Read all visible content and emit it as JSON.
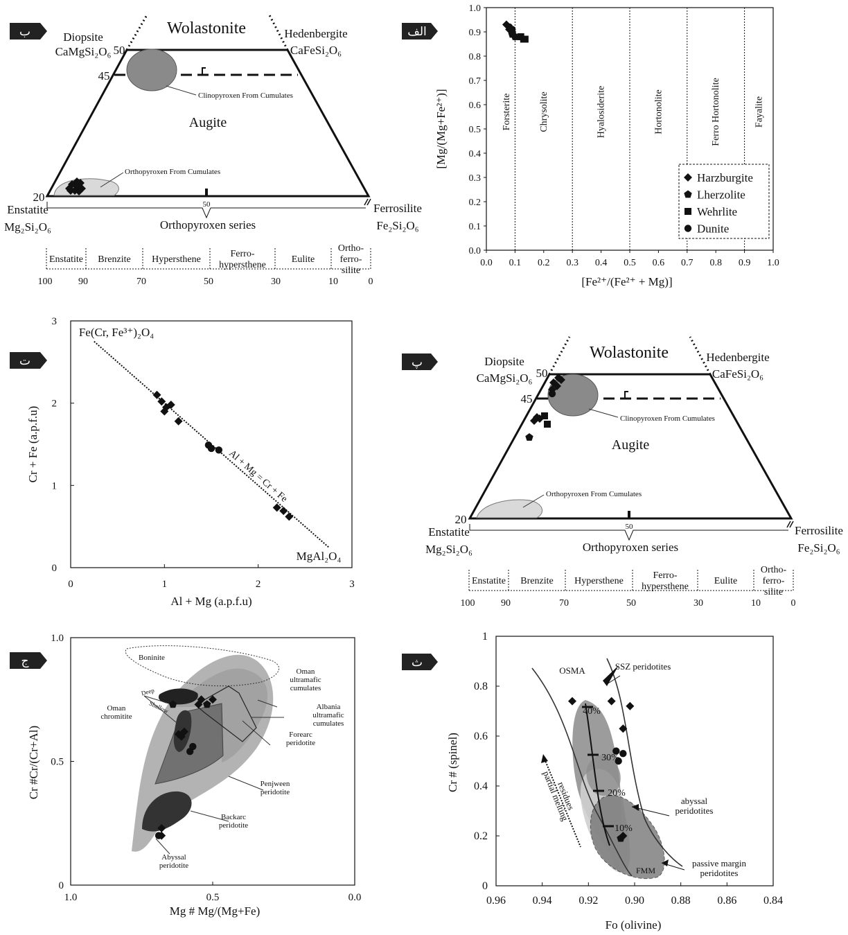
{
  "panel_labels": {
    "b": "ب",
    "alef": "الف",
    "t": "ت",
    "p": "پ",
    "j": "ج",
    "s": "ث"
  },
  "pyroxene": {
    "wolastonite": "Wolastonite",
    "diopside": "Diopsite",
    "diopside_formula": "CaMgSi₂O₆",
    "hedenbergite": "Hedenbergite",
    "hedenbergite_formula": "CaFeSi₂O₆",
    "enstatite": "Enstatite",
    "enstatite_formula": "Mg₂Si₂O₆",
    "ferrosilite": "Ferrosilite",
    "ferrosilite_formula": "Fe₂Si₂O₆",
    "augite": "Augite",
    "tick_50": "50",
    "tick_45": "45",
    "tick_20": "20",
    "center_50": "50",
    "cpx_label": "Clinopyroxen From Cumulates",
    "opx_label": "Orthopyroxen From Cumulates",
    "series": "Orthopyroxen series",
    "scale": [
      {
        "name": "Enstatite"
      },
      {
        "name": "Brenzite"
      },
      {
        "name": "Hypersthene"
      },
      {
        "name": "Ferro-|hypersthene"
      },
      {
        "name": "Eulite"
      },
      {
        "name": "Ortho-|ferro-|silite"
      }
    ],
    "scale_values": [
      "100",
      "90",
      "70",
      "50",
      "30",
      "10",
      "0"
    ]
  },
  "chart_data": [
    {
      "type": "scatter",
      "panel": "ب",
      "title": "Wolastonite",
      "series": [
        {
          "name": "Harzburgite",
          "marker": "diamond",
          "points": [
            [
              92,
              21
            ],
            [
              93,
              22
            ],
            [
              91,
              23
            ],
            [
              90,
              22
            ],
            [
              94,
              24
            ],
            [
              92,
              24
            ],
            [
              90,
              24
            ],
            [
              89,
              22
            ],
            [
              93,
              20
            ],
            [
              95,
              22
            ]
          ]
        }
      ]
    },
    {
      "type": "scatter",
      "panel": "الف",
      "xlabel": "[Fe²⁺/(Fe²⁺ + Mg)]",
      "ylabel": "[Mg/(Mg+Fe²⁺)]",
      "xlim": [
        0,
        1
      ],
      "ylim": [
        0,
        1
      ],
      "xticks": [
        "0.0",
        "0.1",
        "0.2",
        "0.3",
        "0.4",
        "0.5",
        "0.6",
        "0.7",
        "0.8",
        "0.9",
        "1.0"
      ],
      "yticks": [
        "0.0",
        "0.1",
        "0.2",
        "0.3",
        "0.4",
        "0.5",
        "0.6",
        "0.7",
        "0.8",
        "0.9",
        "1.0"
      ],
      "fields": [
        {
          "name": "Forsterite",
          "x": 0.07
        },
        {
          "name": "Chrysolite",
          "x": 0.2
        },
        {
          "name": "Hyalosiderite",
          "x": 0.4
        },
        {
          "name": "Hortonolite",
          "x": 0.6
        },
        {
          "name": "Ferro Hortonolite",
          "x": 0.8
        },
        {
          "name": "Fayalite",
          "x": 0.95
        }
      ],
      "boundaries": [
        0.1,
        0.3,
        0.5,
        0.7,
        0.9
      ],
      "legend": {
        "placement": "bottom-right",
        "entries": [
          "Harzburgite",
          "Lherzolite",
          "Wehrlite",
          "Dunite"
        ]
      },
      "series": [
        {
          "name": "Harzburgite",
          "marker": "diamond",
          "points": [
            [
              0.07,
              0.93
            ],
            [
              0.08,
              0.91
            ],
            [
              0.09,
              0.9
            ],
            [
              0.1,
              0.88
            ]
          ]
        },
        {
          "name": "Lherzolite",
          "marker": "pentagon",
          "points": [
            [
              0.09,
              0.89
            ],
            [
              0.1,
              0.88
            ]
          ]
        },
        {
          "name": "Wehrlite",
          "marker": "square",
          "points": [
            [
              0.12,
              0.88
            ],
            [
              0.13,
              0.87
            ],
            [
              0.135,
              0.87
            ]
          ]
        },
        {
          "name": "Dunite",
          "marker": "circle",
          "points": [
            [
              0.08,
              0.92
            ],
            [
              0.09,
              0.91
            ]
          ]
        }
      ]
    },
    {
      "type": "scatter",
      "panel": "ت",
      "xlabel": "Al + Mg (a.p.f.u)",
      "ylabel": "Cr + Fe (a.p.f.u)",
      "xlim": [
        0,
        3
      ],
      "ylim": [
        0,
        3
      ],
      "xticks": [
        "0",
        "1",
        "2",
        "3"
      ],
      "yticks": [
        "0",
        "1",
        "2",
        "3"
      ],
      "top_label": "Fe(Cr, Fe³⁺)₂O₄",
      "bottom_label": "MgAl₂O₄",
      "line_label": "Al + Mg = Cr + Fe",
      "series": [
        {
          "marker": "diamond",
          "points": [
            [
              0.92,
              2.1
            ],
            [
              0.97,
              2.02
            ],
            [
              1.02,
              1.95
            ],
            [
              1.07,
              1.98
            ],
            [
              1.0,
              1.9
            ],
            [
              1.15,
              1.78
            ]
          ]
        },
        {
          "marker": "circle",
          "points": [
            [
              1.47,
              1.49
            ],
            [
              1.5,
              1.45
            ],
            [
              1.58,
              1.43
            ]
          ]
        },
        {
          "marker": "diamond",
          "points": [
            [
              2.2,
              0.73
            ],
            [
              2.27,
              0.69
            ],
            [
              2.33,
              0.62
            ]
          ]
        }
      ]
    },
    {
      "type": "scatter",
      "panel": "پ",
      "title": "Wolastonite",
      "series": [
        {
          "name": "Harzburgite",
          "marker": "diamond",
          "points": [
            [
              45,
              48
            ],
            [
              46,
              49
            ],
            [
              47,
              47
            ],
            [
              45,
              46
            ],
            [
              46,
              45
            ]
          ]
        },
        {
          "name": "Harzburgite",
          "marker": "diamond",
          "points": [
            [
              28,
              27
            ],
            [
              29,
              28
            ],
            [
              30,
              27
            ]
          ]
        },
        {
          "name": "Wehrlite",
          "marker": "square",
          "points": [
            [
              31,
              31
            ],
            [
              32,
              29
            ]
          ]
        },
        {
          "name": "Lherzolite",
          "marker": "pentagon",
          "points": [
            [
              27,
              24
            ]
          ]
        }
      ]
    },
    {
      "type": "scatter",
      "panel": "ج",
      "xlabel": "Mg # Mg/(Mg+Fe)",
      "ylabel": "Cr #Cr/(Cr+Al)",
      "xlim": [
        1.0,
        0.0
      ],
      "ylim": [
        0,
        1.0
      ],
      "xticks": [
        "1.0",
        "0.5",
        "0.0"
      ],
      "yticks": [
        "0",
        "0.5",
        "1.0"
      ],
      "fields": [
        "Boninite",
        "Oman|ultramafic|cumulates",
        "Albania|ultramafic|cumulates",
        "Forearc|peridotite",
        "Penjween|peridotite",
        "Backarc|peridotite",
        "Abyssal|peridotite",
        "Oman|chromitite",
        "Deep",
        "Shallow"
      ],
      "series": [
        {
          "marker": "diamond",
          "points": [
            [
              0.54,
              0.75
            ],
            [
              0.5,
              0.75
            ],
            [
              0.55,
              0.73
            ],
            [
              0.61,
              0.6
            ],
            [
              0.62,
              0.61
            ],
            [
              0.6,
              0.62
            ],
            [
              0.68,
              0.23
            ],
            [
              0.68,
              0.2
            ]
          ]
        },
        {
          "marker": "pentagon",
          "points": [
            [
              0.52,
              0.73
            ],
            [
              0.64,
              0.73
            ]
          ]
        },
        {
          "marker": "circle",
          "points": [
            [
              0.57,
              0.56
            ],
            [
              0.58,
              0.54
            ],
            [
              0.69,
              0.2
            ]
          ]
        }
      ]
    },
    {
      "type": "scatter",
      "panel": "ث",
      "xlabel": "Fo (olivine)",
      "ylabel": "Cr # (spinel)",
      "xlim": [
        0.96,
        0.84
      ],
      "ylim": [
        0,
        1
      ],
      "xticks": [
        "0.96",
        "0.94",
        "0.92",
        "0.90",
        "0.88",
        "0.86",
        "0.84"
      ],
      "yticks": [
        "0",
        "0.2",
        "0.4",
        "0.6",
        "0.8",
        "1"
      ],
      "fields": [
        "OSMA",
        "SSZ peridotites",
        "abyssal|peridotites",
        "passive margin|peridotites",
        "FMM",
        "partial melting|residues"
      ],
      "melting_labels": [
        "40%",
        "30%",
        "20%",
        "10%"
      ],
      "series": [
        {
          "marker": "diamond",
          "points": [
            [
              0.927,
              0.74
            ],
            [
              0.91,
              0.74
            ],
            [
              0.902,
              0.72
            ],
            [
              0.905,
              0.63
            ],
            [
              0.905,
              0.2
            ]
          ]
        },
        {
          "marker": "circle",
          "points": [
            [
              0.908,
              0.54
            ],
            [
              0.905,
              0.53
            ],
            [
              0.907,
              0.5
            ]
          ]
        },
        {
          "marker": "pentagon",
          "points": [
            [
              0.906,
              0.19
            ]
          ]
        }
      ]
    }
  ]
}
